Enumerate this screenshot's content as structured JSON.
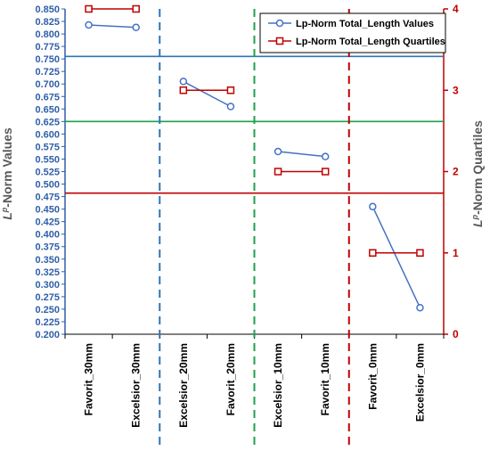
{
  "chart_data": {
    "type": "line",
    "categories": [
      "Favorit_30mm",
      "Excelsior_30mm",
      "Excelsior_20mm",
      "Favorit_20mm",
      "Excelsior_10mm",
      "Favorit_10mm",
      "Favorit_0mm",
      "Excelsior_0mm"
    ],
    "series": [
      {
        "name": "Lp-Norm Total_Length Values",
        "axis": "left",
        "color": "#4472c4",
        "marker": "circle",
        "segments": [
          {
            "categories": [
              "Favorit_30mm",
              "Excelsior_30mm"
            ],
            "values": [
              0.818,
              0.813
            ]
          },
          {
            "categories": [
              "Excelsior_20mm",
              "Favorit_20mm"
            ],
            "values": [
              0.705,
              0.655
            ]
          },
          {
            "categories": [
              "Excelsior_10mm",
              "Favorit_10mm"
            ],
            "values": [
              0.565,
              0.555
            ]
          },
          {
            "categories": [
              "Favorit_0mm",
              "Excelsior_0mm"
            ],
            "values": [
              0.455,
              0.253
            ]
          }
        ]
      },
      {
        "name": "Lp-Norm Total_Length Quartiles",
        "axis": "right",
        "color": "#c00000",
        "marker": "square",
        "segments": [
          {
            "categories": [
              "Favorit_30mm",
              "Excelsior_30mm"
            ],
            "values": [
              4,
              4
            ]
          },
          {
            "categories": [
              "Excelsior_20mm",
              "Favorit_20mm"
            ],
            "values": [
              3,
              3
            ]
          },
          {
            "categories": [
              "Excelsior_10mm",
              "Favorit_10mm"
            ],
            "values": [
              2,
              2
            ]
          },
          {
            "categories": [
              "Favorit_0mm",
              "Excelsior_0mm"
            ],
            "values": [
              1,
              1
            ]
          }
        ]
      }
    ],
    "left_axis": {
      "label": "Lp-Norm Values",
      "label_prefix": "L",
      "label_superscript": "p",
      "label_rest": "-Norm Values",
      "min": 0.2,
      "max": 0.85,
      "step": 0.025,
      "tick_labels": [
        "0.200",
        "0.225",
        "0.250",
        "0.275",
        "0.300",
        "0.325",
        "0.350",
        "0.375",
        "0.400",
        "0.425",
        "0.450",
        "0.475",
        "0.500",
        "0.525",
        "0.550",
        "0.575",
        "0.600",
        "0.625",
        "0.650",
        "0.675",
        "0.700",
        "0.725",
        "0.750",
        "0.775",
        "0.800",
        "0.825",
        "0.850"
      ],
      "color": "#2e5fa8"
    },
    "right_axis": {
      "label": "Lp-Norm Quartiles",
      "label_prefix": "L",
      "label_superscript": "p",
      "label_rest": "-Norm Quartiles",
      "min": 0,
      "max": 4,
      "tick_labels": [
        "0",
        "1",
        "2",
        "3",
        "4"
      ],
      "color": "#c00000"
    },
    "horizontal_lines": [
      {
        "value": 0.755,
        "color": "#2e75b6"
      },
      {
        "value": 0.625,
        "color": "#1fa04a"
      },
      {
        "value": 0.482,
        "color": "#c00000"
      }
    ],
    "vertical_separators": [
      {
        "after_category_index": 1,
        "color": "#2e75b6"
      },
      {
        "after_category_index": 3,
        "color": "#1fa04a"
      },
      {
        "after_category_index": 5,
        "color": "#c00000"
      }
    ],
    "legend_position": "top-right",
    "grid": false
  }
}
